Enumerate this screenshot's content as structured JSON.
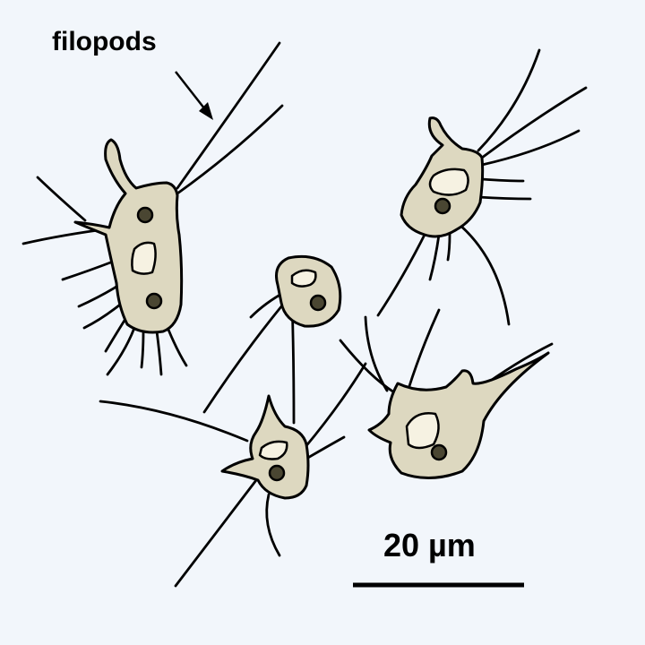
{
  "labels": {
    "filopods": "filopods",
    "scale_bar": "20 µm"
  },
  "colors": {
    "background": "#f2f6fb",
    "cell_body": "#ddd8c0",
    "vacuole": "#f6f2e2",
    "nucleus": "#4a4632",
    "outline": "#000000"
  }
}
